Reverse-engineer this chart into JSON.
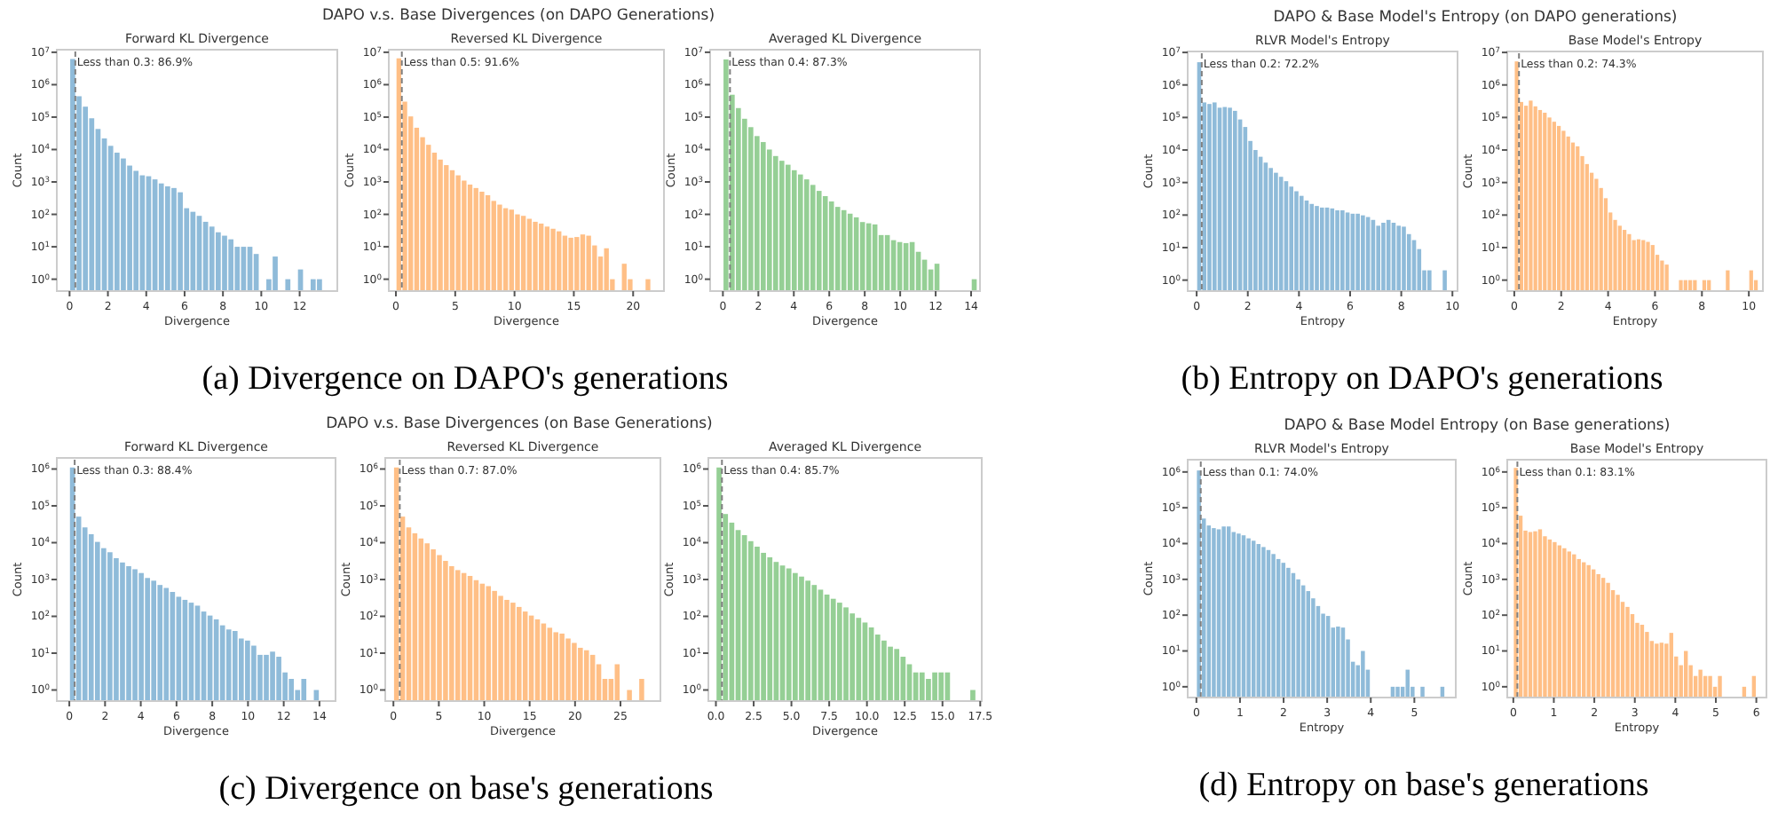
{
  "chart_data": [
    {
      "type": "histogram",
      "title": "Forward KL Divergence",
      "xlabel": "Divergence",
      "ylabel": "Count",
      "log": true,
      "color": "#8fbbd9",
      "annotations": [
        "DAPO v.s. Base Divergences (on DAPO Generations)",
        "(a) Divergence on DAPO's generations"
      ],
      "xlim": [
        -0.665,
        13.965
      ],
      "xticks": [
        0,
        2,
        4,
        6,
        8,
        10,
        12
      ],
      "ylim": [
        0.43,
        12000000
      ],
      "yticks": [
        {
          "value": 1,
          "label": "10$^{0}$"
        },
        {
          "value": 10,
          "label": "10$^{1}$"
        },
        {
          "value": 100,
          "label": "10$^{2}$"
        },
        {
          "value": 1000,
          "label": "10$^{3}$"
        },
        {
          "value": 10000,
          "label": "10$^{4}$"
        },
        {
          "value": 100000,
          "label": "10$^{5}$"
        },
        {
          "value": 1000000,
          "label": "10$^{6}$"
        },
        {
          "value": 10000000,
          "label": "10$^{7}$"
        }
      ],
      "ref_lines": [
        {
          "axis": "x",
          "value": 0.3,
          "label": "Less than 0.3: 86.9%",
          "color": "#808080",
          "line_style": "dashed"
        }
      ],
      "bins": [
        0,
        0.33,
        0.66,
        0.99,
        1.32,
        1.65,
        1.98,
        2.31,
        2.64,
        2.97,
        3.3,
        3.63,
        3.96,
        4.29,
        4.62,
        4.95,
        5.28,
        5.61,
        5.94,
        6.27,
        6.6,
        6.93,
        7.26,
        7.59,
        7.92,
        8.25,
        8.58,
        8.91,
        9.24,
        9.57,
        9.9,
        10.23,
        10.56,
        10.89,
        11.22,
        11.55,
        11.88,
        12.21,
        12.54,
        12.87,
        13.2
      ],
      "values": [
        6200000,
        440000,
        210000,
        92000,
        43000,
        22000,
        13000,
        8000,
        5300,
        3200,
        2200,
        1600,
        1500,
        1200,
        900,
        730,
        650,
        480,
        155,
        120,
        90,
        59,
        42,
        28,
        22,
        17,
        10,
        10,
        10,
        6,
        null,
        1,
        5,
        null,
        1,
        null,
        2,
        null,
        1,
        1
      ]
    },
    {
      "type": "histogram",
      "title": "Reversed KL Divergence",
      "xlabel": "Divergence",
      "ylabel": "Count",
      "log": true,
      "color": "#ffbf86",
      "xlim": [
        -0.6,
        22.6
      ],
      "xticks": [
        0,
        5,
        10,
        15,
        20
      ],
      "ylim": [
        0.43,
        12000000
      ],
      "yticks": [
        {
          "value": 1,
          "label": "10$^{0}$"
        },
        {
          "value": 10,
          "label": "10$^{1}$"
        },
        {
          "value": 100,
          "label": "10$^{2}$"
        },
        {
          "value": 1000,
          "label": "10$^{3}$"
        },
        {
          "value": 10000,
          "label": "10$^{4}$"
        },
        {
          "value": 100000,
          "label": "10$^{5}$"
        },
        {
          "value": 1000000,
          "label": "10$^{6}$"
        },
        {
          "value": 10000000,
          "label": "10$^{7}$"
        }
      ],
      "ref_lines": [
        {
          "axis": "x",
          "value": 0.5,
          "label": "Less than 0.5: 91.6%",
          "color": "#808080",
          "line_style": "dashed"
        }
      ],
      "bins": [
        0,
        0.5,
        1,
        1.5,
        2,
        2.5,
        3,
        3.5,
        4,
        4.5,
        5,
        5.5,
        6,
        6.5,
        7,
        7.5,
        8,
        8.5,
        9,
        9.5,
        10,
        10.5,
        11,
        11.5,
        12,
        12.5,
        13,
        13.5,
        14,
        14.5,
        15,
        15.5,
        16,
        16.5,
        17,
        17.5,
        18,
        18.5,
        19,
        19.5,
        20,
        20.5,
        21,
        21.5
      ],
      "values": [
        6500000,
        300000,
        105000,
        47000,
        24000,
        14000,
        8000,
        4900,
        3300,
        2300,
        1600,
        1100,
        830,
        650,
        500,
        390,
        260,
        200,
        155,
        140,
        100,
        90,
        73,
        59,
        52,
        42,
        36,
        30,
        22,
        19,
        20,
        24,
        22,
        11,
        5,
        9,
        1,
        null,
        3,
        1,
        null,
        null,
        1
      ]
    },
    {
      "type": "histogram",
      "title": "Averaged KL Divergence",
      "xlabel": "Divergence",
      "ylabel": "Count",
      "log": true,
      "color": "#95cf95",
      "xlim": [
        -0.72,
        14.5
      ],
      "xticks": [
        0,
        2,
        4,
        6,
        8,
        10,
        12,
        14
      ],
      "ylim": [
        0.43,
        12000000
      ],
      "yticks": [
        {
          "value": 1,
          "label": "10$^{0}$"
        },
        {
          "value": 10,
          "label": "10$^{1}$"
        },
        {
          "value": 100,
          "label": "10$^{2}$"
        },
        {
          "value": 1000,
          "label": "10$^{3}$"
        },
        {
          "value": 10000,
          "label": "10$^{4}$"
        },
        {
          "value": 100000,
          "label": "10$^{5}$"
        },
        {
          "value": 1000000,
          "label": "10$^{6}$"
        },
        {
          "value": 10000000,
          "label": "10$^{7}$"
        }
      ],
      "ref_lines": [
        {
          "axis": "x",
          "value": 0.4,
          "label": "Less than 0.4: 87.3%",
          "color": "#808080",
          "line_style": "dashed"
        }
      ],
      "bins": [
        0,
        0.35,
        0.7,
        1.05,
        1.4,
        1.75,
        2.1,
        2.45,
        2.8,
        3.15,
        3.5,
        3.85,
        4.2,
        4.55,
        4.9,
        5.25,
        5.6,
        5.95,
        6.3,
        6.65,
        7,
        7.35,
        7.7,
        8.05,
        8.4,
        8.75,
        9.1,
        9.45,
        9.8,
        10.15,
        10.5,
        10.85,
        11.2,
        11.55,
        11.9,
        12.25,
        12.6,
        12.95,
        13.3,
        13.65,
        14,
        14.35
      ],
      "values": [
        6000000,
        490000,
        190000,
        89000,
        49000,
        26000,
        17000,
        10000,
        6300,
        4500,
        3400,
        2300,
        1700,
        1200,
        810,
        530,
        365,
        250,
        170,
        135,
        105,
        81,
        58,
        53,
        49,
        23,
        23,
        16,
        14,
        13,
        14,
        7,
        4,
        2,
        3,
        null,
        null,
        null,
        null,
        null,
        1
      ]
    },
    {
      "type": "histogram",
      "title": "RLVR Model's Entropy",
      "xlabel": "Entropy",
      "ylabel": "Count",
      "log": true,
      "color": "#8fbbd9",
      "annotations": [
        "DAPO & Base Model's Entropy (on DAPO generations)",
        "(b) Entropy on DAPO's generations"
      ],
      "xlim": [
        -0.35,
        10.2
      ],
      "xticks": [
        0,
        2,
        4,
        6,
        8,
        10
      ],
      "ylim": [
        0.46,
        10700000
      ],
      "yticks": [
        {
          "value": 1,
          "label": "10$^{0}$"
        },
        {
          "value": 10,
          "label": "10$^{1}$"
        },
        {
          "value": 100,
          "label": "10$^{2}$"
        },
        {
          "value": 1000,
          "label": "10$^{3}$"
        },
        {
          "value": 10000,
          "label": "10$^{4}$"
        },
        {
          "value": 100000,
          "label": "10$^{5}$"
        },
        {
          "value": 1000000,
          "label": "10$^{6}$"
        },
        {
          "value": 10000000,
          "label": "10$^{7}$"
        }
      ],
      "ref_lines": [
        {
          "axis": "x",
          "value": 0.2,
          "label": "Less than 0.2: 72.2%",
          "color": "#808080",
          "line_style": "dashed"
        }
      ],
      "bins": [
        0,
        0.2,
        0.4,
        0.6,
        0.8,
        1,
        1.2,
        1.4,
        1.6,
        1.8,
        2,
        2.2,
        2.4,
        2.6,
        2.8,
        3,
        3.2,
        3.4,
        3.6,
        3.8,
        4,
        4.2,
        4.4,
        4.6,
        4.8,
        5,
        5.2,
        5.4,
        5.6,
        5.8,
        6,
        6.2,
        6.4,
        6.6,
        6.8,
        7,
        7.2,
        7.4,
        7.6,
        7.8,
        8,
        8.2,
        8.4,
        8.6,
        8.8,
        9,
        9.2,
        9.4,
        9.6,
        9.8
      ],
      "values": [
        5000000,
        290000,
        260000,
        290000,
        200000,
        210000,
        200000,
        160000,
        87000,
        51000,
        19000,
        10000,
        6200,
        4100,
        2800,
        2000,
        1500,
        1100,
        750,
        540,
        390,
        280,
        220,
        190,
        170,
        170,
        160,
        140,
        140,
        120,
        110,
        110,
        98,
        87,
        71,
        47,
        58,
        71,
        58,
        47,
        44,
        26,
        17,
        9,
        2,
        2,
        null,
        null,
        2
      ]
    },
    {
      "type": "histogram",
      "title": "Base Model's Entropy",
      "xlabel": "Entropy",
      "ylabel": "Count",
      "log": true,
      "color": "#ffbf86",
      "xlim": [
        -0.3,
        10.6
      ],
      "xticks": [
        0,
        2,
        4,
        6,
        8,
        10
      ],
      "ylim": [
        0.46,
        10700000
      ],
      "yticks": [
        {
          "value": 1,
          "label": "10$^{0}$"
        },
        {
          "value": 10,
          "label": "10$^{1}$"
        },
        {
          "value": 100,
          "label": "10$^{2}$"
        },
        {
          "value": 1000,
          "label": "10$^{3}$"
        },
        {
          "value": 10000,
          "label": "10$^{4}$"
        },
        {
          "value": 100000,
          "label": "10$^{5}$"
        },
        {
          "value": 1000000,
          "label": "10$^{6}$"
        },
        {
          "value": 10000000,
          "label": "10$^{7}$"
        }
      ],
      "ref_lines": [
        {
          "axis": "x",
          "value": 0.2,
          "label": "Less than 0.2: 74.3%",
          "color": "#808080",
          "line_style": "dashed"
        }
      ],
      "bins": [
        0,
        0.2,
        0.4,
        0.6,
        0.8,
        1,
        1.2,
        1.4,
        1.6,
        1.8,
        2,
        2.2,
        2.4,
        2.6,
        2.8,
        3,
        3.2,
        3.4,
        3.6,
        3.8,
        4,
        4.2,
        4.4,
        4.6,
        4.8,
        5,
        5.2,
        5.4,
        5.6,
        5.8,
        6,
        6.2,
        6.4,
        6.6,
        6.8,
        7,
        7.2,
        7.4,
        7.6,
        7.8,
        8,
        8.2,
        8.4,
        8.6,
        8.8,
        9,
        9.2,
        9.4,
        9.6,
        9.8,
        10,
        10.2,
        10.4
      ],
      "values": [
        5300000,
        300000,
        230000,
        330000,
        220000,
        170000,
        140000,
        100000,
        74000,
        55000,
        39000,
        26000,
        17000,
        13000,
        6500,
        3700,
        2000,
        1300,
        680,
        330,
        120,
        71,
        47,
        35,
        26,
        17,
        18,
        17,
        15,
        12,
        6,
        4,
        3,
        null,
        null,
        1,
        1,
        1,
        1,
        null,
        1,
        1,
        null,
        null,
        null,
        2,
        null,
        null,
        null,
        null,
        2,
        1
      ]
    },
    {
      "type": "histogram",
      "title": "Forward KL Divergence",
      "xlabel": "Divergence",
      "ylabel": "Count",
      "log": true,
      "color": "#8fbbd9",
      "annotations": [
        "DAPO v.s. Base Divergences (on Base Generations)",
        "(c) Divergence on base's generations"
      ],
      "xlim": [
        -0.7,
        14.9
      ],
      "xticks": [
        0,
        2,
        4,
        6,
        8,
        10,
        12,
        14
      ],
      "ylim": [
        0.5,
        2000000
      ],
      "yticks": [
        {
          "value": 1,
          "label": "10$^{0}$"
        },
        {
          "value": 10,
          "label": "10$^{1}$"
        },
        {
          "value": 100,
          "label": "10$^{2}$"
        },
        {
          "value": 1000,
          "label": "10$^{3}$"
        },
        {
          "value": 10000,
          "label": "10$^{4}$"
        },
        {
          "value": 100000,
          "label": "10$^{5}$"
        },
        {
          "value": 1000000,
          "label": "10$^{6}$"
        }
      ],
      "ref_lines": [
        {
          "axis": "x",
          "value": 0.3,
          "label": "Less than 0.3: 88.4%",
          "color": "#808080",
          "line_style": "dashed"
        }
      ],
      "bins": [
        0,
        0.35,
        0.7,
        1.05,
        1.4,
        1.75,
        2.1,
        2.45,
        2.8,
        3.15,
        3.5,
        3.85,
        4.2,
        4.55,
        4.9,
        5.25,
        5.6,
        5.95,
        6.3,
        6.65,
        7,
        7.35,
        7.7,
        8.05,
        8.4,
        8.75,
        9.1,
        9.45,
        9.8,
        10.15,
        10.5,
        10.85,
        11.2,
        11.55,
        11.9,
        12.25,
        12.6,
        12.95,
        13.3,
        13.65,
        14,
        14.35
      ],
      "values": [
        1100000,
        51000,
        26000,
        17000,
        10500,
        7100,
        5500,
        3800,
        2900,
        2300,
        1900,
        1500,
        1100,
        930,
        710,
        590,
        460,
        340,
        280,
        235,
        195,
        135,
        105,
        83,
        57,
        44,
        40,
        25,
        22,
        16,
        9,
        9,
        11,
        8,
        3,
        2,
        1,
        2,
        null,
        1,
        null
      ]
    },
    {
      "type": "histogram",
      "title": "Reversed KL Divergence",
      "xlabel": "Divergence",
      "ylabel": "Count",
      "log": true,
      "color": "#ffbf86",
      "xlim": [
        -0.9,
        29.4
      ],
      "xticks": [
        0,
        5,
        10,
        15,
        20,
        25
      ],
      "ylim": [
        0.5,
        2000000
      ],
      "yticks": [
        {
          "value": 1,
          "label": "10$^{0}$"
        },
        {
          "value": 10,
          "label": "10$^{1}$"
        },
        {
          "value": 100,
          "label": "10$^{2}$"
        },
        {
          "value": 1000,
          "label": "10$^{3}$"
        },
        {
          "value": 10000,
          "label": "10$^{4}$"
        },
        {
          "value": 100000,
          "label": "10$^{5}$"
        },
        {
          "value": 1000000,
          "label": "10$^{6}$"
        }
      ],
      "ref_lines": [
        {
          "axis": "x",
          "value": 0.7,
          "label": "Less than 0.7: 87.0%",
          "color": "#808080",
          "line_style": "dashed"
        }
      ],
      "bins": [
        0,
        0.675,
        1.35,
        2.025,
        2.7,
        3.375,
        4.05,
        4.725,
        5.4,
        6.075,
        6.75,
        7.425,
        8.1,
        8.775,
        9.45,
        10.125,
        10.8,
        11.475,
        12.15,
        12.825,
        13.5,
        14.175,
        14.85,
        15.525,
        16.2,
        16.875,
        17.55,
        18.225,
        18.9,
        19.575,
        20.25,
        20.925,
        21.6,
        22.275,
        22.95,
        23.625,
        24.3,
        24.975,
        25.65,
        26.325,
        27,
        27.675
      ],
      "values": [
        1100000,
        51000,
        26000,
        18000,
        13000,
        9600,
        6600,
        4600,
        3200,
        2300,
        1800,
        1500,
        1250,
        960,
        770,
        660,
        490,
        360,
        280,
        235,
        180,
        135,
        105,
        83,
        64,
        49,
        37,
        34,
        25,
        19,
        14,
        12,
        9,
        5,
        2,
        2,
        5,
        null,
        1,
        null,
        2
      ]
    },
    {
      "type": "histogram",
      "title": "Averaged KL Divergence",
      "xlabel": "Divergence",
      "ylabel": "Count",
      "log": true,
      "color": "#95cf95",
      "xlim": [
        -0.5,
        17.6
      ],
      "xticks": [
        {
          "value": 0,
          "label": "0.0"
        },
        {
          "value": 2.5,
          "label": "2.5"
        },
        {
          "value": 5,
          "label": "5.0"
        },
        {
          "value": 7.5,
          "label": "7.5"
        },
        {
          "value": 10,
          "label": "10.0"
        },
        {
          "value": 12.5,
          "label": "12.5"
        },
        {
          "value": 15,
          "label": "15.0"
        },
        {
          "value": 17.5,
          "label": "17.5"
        }
      ],
      "ylim": [
        0.5,
        2000000
      ],
      "yticks": [
        {
          "value": 1,
          "label": "10$^{0}$"
        },
        {
          "value": 10,
          "label": "10$^{1}$"
        },
        {
          "value": 100,
          "label": "10$^{2}$"
        },
        {
          "value": 1000,
          "label": "10$^{3}$"
        },
        {
          "value": 10000,
          "label": "10$^{4}$"
        },
        {
          "value": 100000,
          "label": "10$^{5}$"
        },
        {
          "value": 1000000,
          "label": "10$^{6}$"
        }
      ],
      "ref_lines": [
        {
          "axis": "x",
          "value": 0.4,
          "label": "Less than 0.4: 85.7%",
          "color": "#808080",
          "line_style": "dashed"
        }
      ],
      "bins": [
        0,
        0.42,
        0.84,
        1.26,
        1.68,
        2.1,
        2.52,
        2.94,
        3.36,
        3.78,
        4.2,
        4.62,
        5.04,
        5.46,
        5.88,
        6.3,
        6.72,
        7.14,
        7.56,
        7.98,
        8.4,
        8.82,
        9.24,
        9.66,
        10.08,
        10.5,
        10.92,
        11.34,
        11.76,
        12.18,
        12.6,
        13.02,
        13.44,
        13.86,
        14.28,
        14.7,
        15.12,
        15.54,
        15.96,
        16.38,
        16.8,
        17.22
      ],
      "values": [
        1100000,
        60000,
        35000,
        22000,
        16000,
        11000,
        7800,
        5300,
        4000,
        3000,
        2400,
        2000,
        1500,
        1200,
        930,
        710,
        530,
        390,
        300,
        235,
        175,
        120,
        91,
        68,
        50,
        32,
        22,
        15,
        13,
        8,
        5,
        3,
        3,
        2,
        3,
        3,
        3,
        null,
        null,
        null,
        1
      ]
    },
    {
      "type": "histogram",
      "title": "RLVR Model's Entropy",
      "xlabel": "Entropy",
      "ylabel": "Count",
      "log": true,
      "color": "#8fbbd9",
      "annotations": [
        "DAPO & Base Model Entropy (on Base generations)",
        "(d) Entropy on base's generations"
      ],
      "xlim": [
        -0.2,
        5.95
      ],
      "xticks": [
        0,
        1,
        2,
        3,
        4,
        5
      ],
      "ylim": [
        0.5,
        2200000
      ],
      "yticks": [
        {
          "value": 1,
          "label": "10$^{0}$"
        },
        {
          "value": 10,
          "label": "10$^{1}$"
        },
        {
          "value": 100,
          "label": "10$^{2}$"
        },
        {
          "value": 1000,
          "label": "10$^{3}$"
        },
        {
          "value": 10000,
          "label": "10$^{4}$"
        },
        {
          "value": 100000,
          "label": "10$^{5}$"
        },
        {
          "value": 1000000,
          "label": "10$^{6}$"
        }
      ],
      "ref_lines": [
        {
          "axis": "x",
          "value": 0.1,
          "label": "Less than 0.1: 74.0%",
          "color": "#808080",
          "line_style": "dashed"
        }
      ],
      "bins": [
        0,
        0.114,
        0.228,
        0.342,
        0.456,
        0.57,
        0.684,
        0.798,
        0.912,
        1.026,
        1.14,
        1.254,
        1.368,
        1.482,
        1.596,
        1.71,
        1.824,
        1.938,
        2.052,
        2.166,
        2.28,
        2.394,
        2.508,
        2.622,
        2.736,
        2.85,
        2.964,
        3.078,
        3.192,
        3.306,
        3.42,
        3.534,
        3.648,
        3.762,
        3.876,
        3.99,
        4.104,
        4.218,
        4.332,
        4.446,
        4.56,
        4.674,
        4.788,
        4.902,
        5.016,
        5.13,
        5.244,
        5.358,
        5.472,
        5.586,
        5.7
      ],
      "values": [
        1100000,
        50000,
        32000,
        27000,
        25000,
        30000,
        30000,
        21000,
        19000,
        17000,
        14000,
        12000,
        9700,
        8000,
        6600,
        5100,
        3700,
        2900,
        2100,
        1500,
        1000,
        680,
        470,
        295,
        180,
        110,
        95,
        45,
        48,
        45,
        21,
        5,
        4,
        10,
        3,
        null,
        null,
        null,
        null,
        1,
        1,
        1,
        3,
        1,
        null,
        1,
        null,
        null,
        null,
        1
      ]
    },
    {
      "type": "histogram",
      "title": "Base Model's Entropy",
      "xlabel": "Entropy",
      "ylabel": "Count",
      "log": true,
      "color": "#ffbf86",
      "xlim": [
        -0.15,
        6.25
      ],
      "xticks": [
        0,
        1,
        2,
        3,
        4,
        5,
        6
      ],
      "ylim": [
        0.5,
        2200000
      ],
      "yticks": [
        {
          "value": 1,
          "label": "10$^{0}$"
        },
        {
          "value": 10,
          "label": "10$^{1}$"
        },
        {
          "value": 100,
          "label": "10$^{2}$"
        },
        {
          "value": 1000,
          "label": "10$^{3}$"
        },
        {
          "value": 10000,
          "label": "10$^{4}$"
        },
        {
          "value": 100000,
          "label": "10$^{5}$"
        },
        {
          "value": 1000000,
          "label": "10$^{6}$"
        }
      ],
      "ref_lines": [
        {
          "axis": "x",
          "value": 0.1,
          "label": "Less than 0.1: 83.1%",
          "color": "#808080",
          "line_style": "dashed"
        }
      ],
      "bins": [
        0,
        0.12,
        0.24,
        0.36,
        0.48,
        0.6,
        0.72,
        0.84,
        0.96,
        1.08,
        1.2,
        1.32,
        1.44,
        1.56,
        1.68,
        1.8,
        1.92,
        2.04,
        2.16,
        2.28,
        2.4,
        2.52,
        2.64,
        2.76,
        2.88,
        3,
        3.12,
        3.24,
        3.36,
        3.48,
        3.6,
        3.72,
        3.84,
        3.96,
        4.08,
        4.2,
        4.32,
        4.44,
        4.56,
        4.68,
        4.8,
        4.92,
        5.04,
        5.16,
        5.28,
        5.4,
        5.52,
        5.64,
        5.76,
        5.88,
        6
      ],
      "values": [
        1300000,
        60000,
        23000,
        21000,
        22000,
        25000,
        16000,
        13000,
        11000,
        8900,
        7400,
        6000,
        5000,
        3700,
        3000,
        2500,
        1900,
        1400,
        1100,
        800,
        500,
        370,
        235,
        170,
        107,
        61,
        54,
        34,
        19,
        16,
        17,
        16,
        32,
        7,
        4,
        10,
        4,
        2,
        3,
        2,
        2,
        1,
        2,
        null,
        null,
        null,
        null,
        1,
        null,
        2
      ]
    }
  ]
}
